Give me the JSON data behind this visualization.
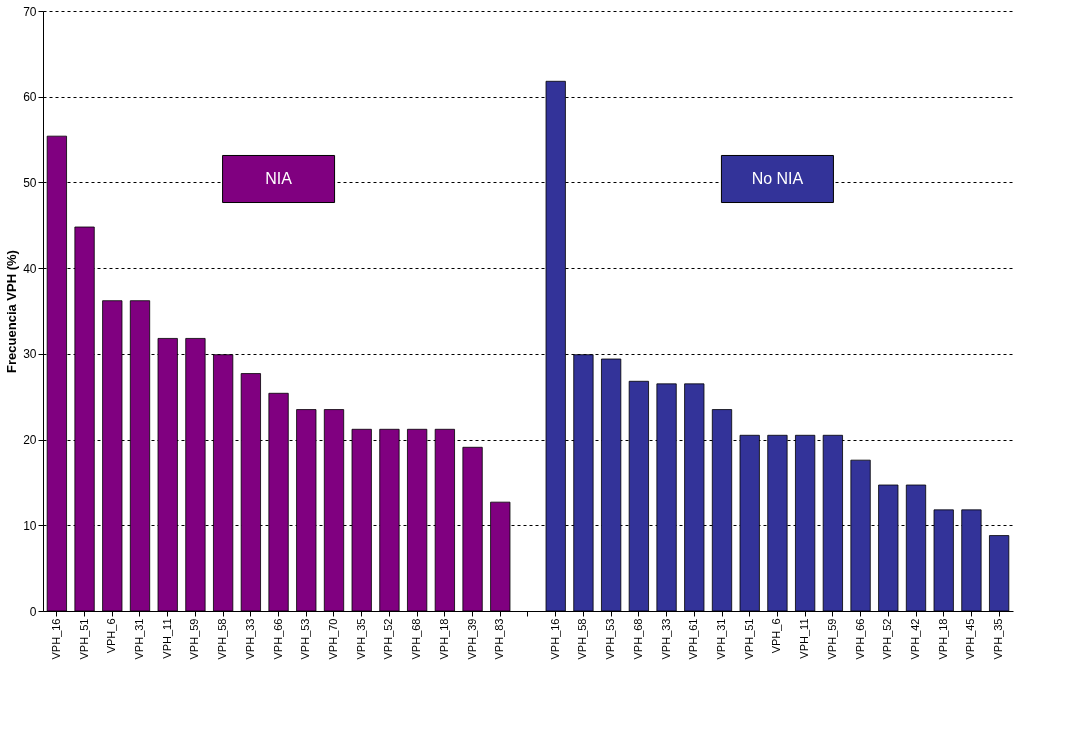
{
  "chart_data": {
    "type": "bar",
    "ylabel": "Frecuencia VPH (%)",
    "categories": [
      "VPH_16",
      "VPH_51",
      "VPH_6",
      "VPH_31",
      "VPH_11",
      "VPH_59",
      "VPH_58",
      "VPH_33",
      "VPH_66",
      "VPH_53",
      "VPH_70",
      "VPH_35",
      "VPH_52",
      "VPH_68",
      "VPH_18",
      "VPH_39",
      "VPH_83",
      null,
      "VPH_16",
      "VPH_58",
      "VPH_53",
      "VPH_68",
      "VPH_33",
      "VPH_61",
      "VPH_31",
      "VPH_51",
      "VPH_6",
      "VPH_11",
      "VPH_59",
      "VPH_66",
      "VPH_52",
      "VPH_42",
      "VPH_18",
      "VPH_45",
      "VPH_35"
    ],
    "series": [
      {
        "name": "NIA",
        "color": "#800080",
        "values": [
          55.4,
          44.8,
          36.2,
          36.2,
          31.8,
          31.8,
          29.9,
          27.7,
          25.4,
          23.5,
          23.5,
          21.2,
          21.2,
          21.2,
          21.2,
          19.1,
          12.7,
          null,
          null,
          null,
          null,
          null,
          null,
          null,
          null,
          null,
          null,
          null,
          null,
          null,
          null,
          null,
          null,
          null,
          null
        ]
      },
      {
        "name": "No NIA",
        "color": "#333399",
        "values": [
          null,
          null,
          null,
          null,
          null,
          null,
          null,
          null,
          null,
          null,
          null,
          null,
          null,
          null,
          null,
          null,
          null,
          null,
          61.8,
          29.9,
          29.4,
          26.8,
          26.5,
          26.5,
          23.5,
          20.5,
          20.5,
          20.5,
          20.5,
          17.6,
          14.7,
          14.7,
          11.8,
          11.8,
          8.8
        ]
      }
    ],
    "ylim": [
      0,
      70
    ],
    "yticks": [
      0,
      10,
      20,
      30,
      40,
      50,
      60,
      70
    ],
    "grid": "y"
  }
}
